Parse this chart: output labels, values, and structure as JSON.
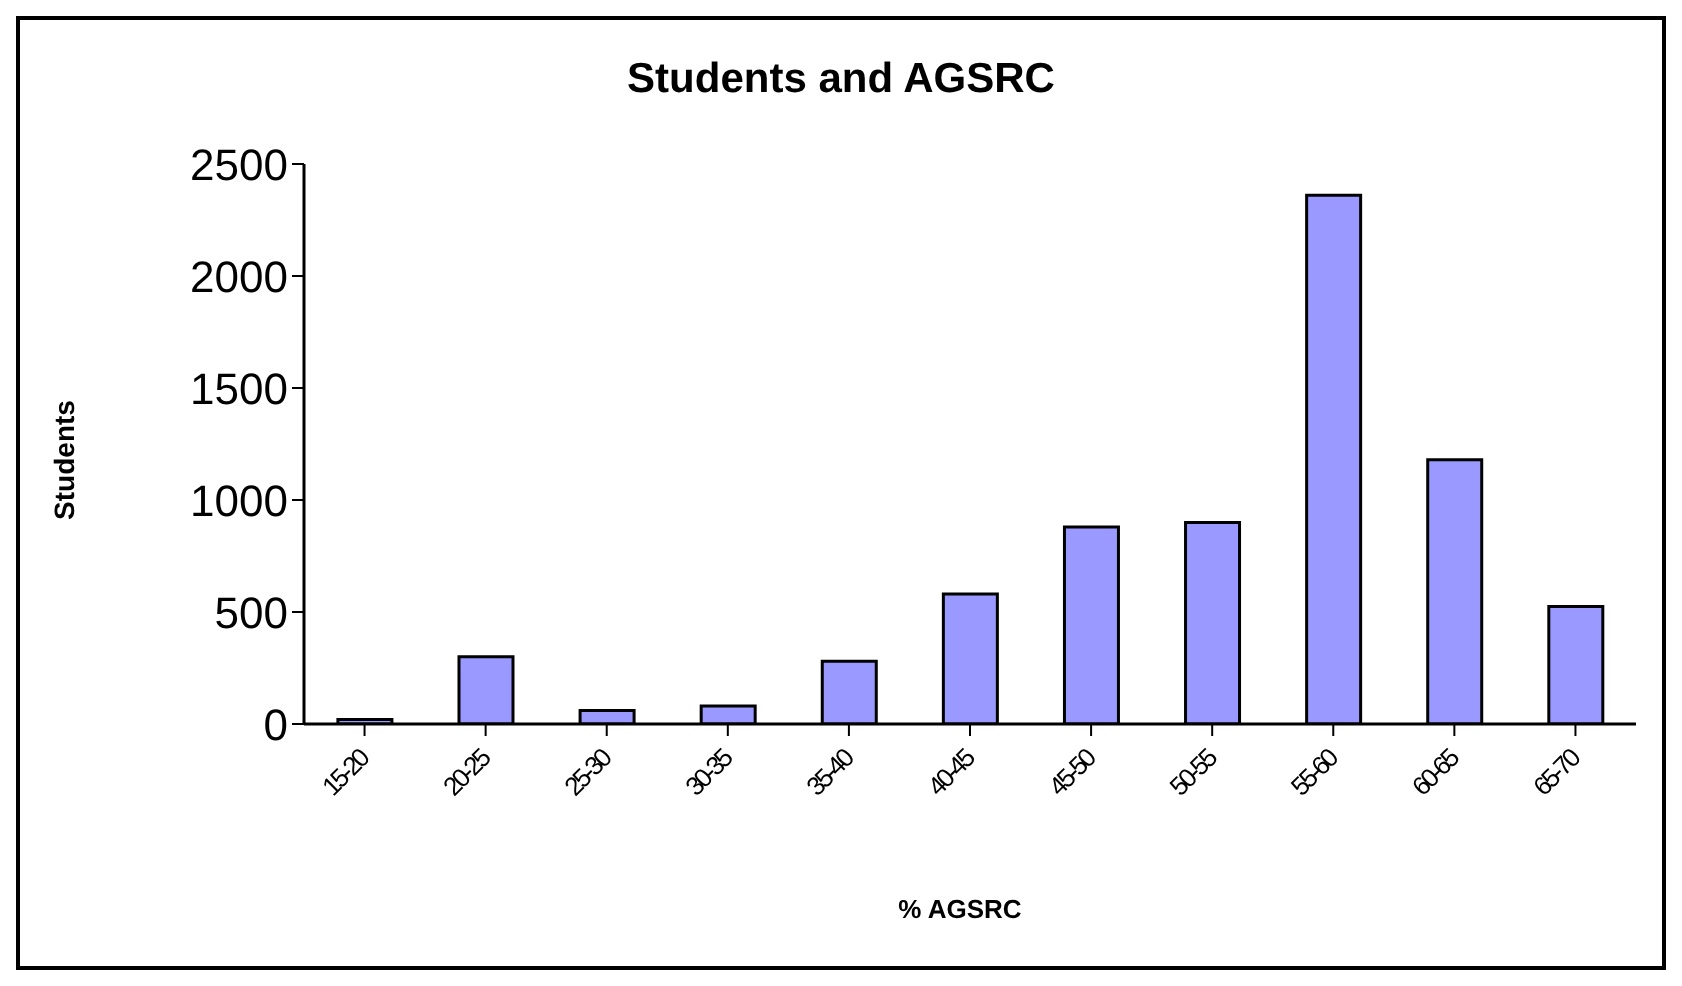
{
  "chart_data": {
    "type": "bar",
    "title": "Students and AGSRC",
    "xlabel": "% AGSRC",
    "ylabel": "Students",
    "categories": [
      "15-20",
      "20-25",
      "25-30",
      "30-35",
      "35-40",
      "40-45",
      "45-50",
      "50-55",
      "55-60",
      "60-65",
      "65-70"
    ],
    "values": [
      20,
      300,
      60,
      80,
      280,
      580,
      880,
      900,
      2360,
      1180,
      525
    ],
    "color": "#9999ff",
    "ylim": [
      0,
      2500
    ],
    "yticks": [
      0,
      500,
      1000,
      1500,
      2000,
      2500
    ],
    "grid": false,
    "legend": false
  }
}
